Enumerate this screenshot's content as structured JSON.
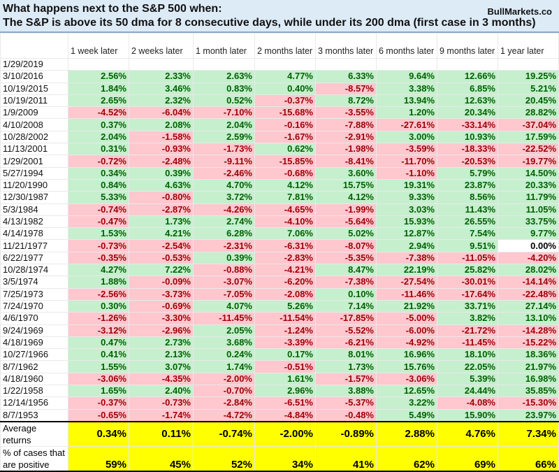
{
  "header": {
    "title_line1": "What happens next to the S&P 500 when:",
    "title_line2": "The S&P is above its 50 dma for 8 consecutive days, while under its 200 dma (first case in 3 months)",
    "brand": "BullMarkets.co",
    "background_color": "#ddebf7"
  },
  "colors": {
    "positive_fill": "#c6efce",
    "positive_text": "#006100",
    "negative_fill": "#ffc7ce",
    "negative_text": "#9c0006",
    "summary_fill": "#ffff00"
  },
  "columns": [
    "1 week later",
    "2 weeks later",
    "1 month later",
    "2 months later",
    "3 months later",
    "6 months later",
    "9 months later",
    "1 year later"
  ],
  "rows": [
    {
      "date": "1/29/2019",
      "values": [
        "",
        "",
        "",
        "",
        "",
        "",
        "",
        ""
      ]
    },
    {
      "date": "3/10/2016",
      "values": [
        "2.56%",
        "2.33%",
        "2.63%",
        "4.77%",
        "6.33%",
        "9.64%",
        "12.66%",
        "19.25%"
      ]
    },
    {
      "date": "10/19/2015",
      "values": [
        "1.84%",
        "3.46%",
        "0.83%",
        "0.40%",
        "-8.57%",
        "3.38%",
        "6.85%",
        "5.21%"
      ]
    },
    {
      "date": "10/19/2011",
      "values": [
        "2.65%",
        "2.32%",
        "0.52%",
        "-0.37%",
        "8.72%",
        "13.94%",
        "12.63%",
        "20.45%"
      ]
    },
    {
      "date": "1/9/2009",
      "values": [
        "-4.52%",
        "-6.04%",
        "-7.10%",
        "-15.68%",
        "-3.55%",
        "1.20%",
        "20.34%",
        "28.82%"
      ]
    },
    {
      "date": "4/10/2008",
      "values": [
        "0.37%",
        "2.08%",
        "2.04%",
        "-0.16%",
        "-7.88%",
        "-27.61%",
        "-33.14%",
        "-37.04%"
      ]
    },
    {
      "date": "10/28/2002",
      "values": [
        "2.04%",
        "-1.58%",
        "2.59%",
        "-1.67%",
        "-2.91%",
        "3.00%",
        "10.93%",
        "17.59%"
      ]
    },
    {
      "date": "11/13/2001",
      "values": [
        "0.31%",
        "-0.93%",
        "-1.73%",
        "0.62%",
        "-1.98%",
        "-3.59%",
        "-18.33%",
        "-22.52%"
      ]
    },
    {
      "date": "1/29/2001",
      "values": [
        "-0.72%",
        "-2.48%",
        "-9.11%",
        "-15.85%",
        "-8.41%",
        "-11.70%",
        "-20.53%",
        "-19.77%"
      ]
    },
    {
      "date": "5/27/1994",
      "values": [
        "0.34%",
        "0.39%",
        "-2.46%",
        "-0.68%",
        "3.60%",
        "-1.10%",
        "5.79%",
        "14.50%"
      ]
    },
    {
      "date": "11/20/1990",
      "values": [
        "0.84%",
        "4.63%",
        "4.70%",
        "4.12%",
        "15.75%",
        "19.31%",
        "23.87%",
        "20.33%"
      ]
    },
    {
      "date": "12/30/1987",
      "values": [
        "5.33%",
        "-0.80%",
        "3.72%",
        "7.81%",
        "4.12%",
        "9.33%",
        "8.56%",
        "11.79%"
      ]
    },
    {
      "date": "5/3/1984",
      "values": [
        "-0.74%",
        "-2.87%",
        "-4.26%",
        "-4.65%",
        "-1.99%",
        "3.03%",
        "11.43%",
        "11.05%"
      ]
    },
    {
      "date": "4/13/1982",
      "values": [
        "-0.47%",
        "1.73%",
        "2.74%",
        "-4.10%",
        "-5.64%",
        "15.93%",
        "26.55%",
        "33.75%"
      ]
    },
    {
      "date": "4/14/1978",
      "values": [
        "1.53%",
        "4.21%",
        "6.28%",
        "7.06%",
        "5.02%",
        "12.87%",
        "7.54%",
        "9.77%"
      ]
    },
    {
      "date": "11/21/1977",
      "values": [
        "-0.73%",
        "-2.54%",
        "-2.31%",
        "-6.31%",
        "-8.07%",
        "2.94%",
        "9.51%",
        "0.00%"
      ]
    },
    {
      "date": "6/22/1977",
      "values": [
        "-0.35%",
        "-0.53%",
        "0.39%",
        "-2.83%",
        "-5.35%",
        "-7.38%",
        "-11.05%",
        "-4.20%"
      ]
    },
    {
      "date": "10/28/1974",
      "values": [
        "4.27%",
        "7.22%",
        "-0.88%",
        "-4.21%",
        "8.47%",
        "22.19%",
        "25.82%",
        "28.02%"
      ]
    },
    {
      "date": "3/5/1974",
      "values": [
        "1.88%",
        "-0.09%",
        "-3.07%",
        "-6.20%",
        "-7.38%",
        "-27.54%",
        "-30.01%",
        "-14.14%"
      ]
    },
    {
      "date": "7/25/1973",
      "values": [
        "-2.56%",
        "-3.73%",
        "-7.05%",
        "-2.08%",
        "0.10%",
        "-11.46%",
        "-17.64%",
        "-22.48%"
      ]
    },
    {
      "date": "7/24/1970",
      "values": [
        "0.30%",
        "-0.69%",
        "4.07%",
        "5.26%",
        "7.14%",
        "21.92%",
        "33.71%",
        "27.14%"
      ]
    },
    {
      "date": "4/6/1970",
      "values": [
        "-1.26%",
        "-3.30%",
        "-11.45%",
        "-11.54%",
        "-17.85%",
        "-5.00%",
        "3.82%",
        "13.10%"
      ]
    },
    {
      "date": "9/24/1969",
      "values": [
        "-3.12%",
        "-2.96%",
        "2.05%",
        "-1.24%",
        "-5.52%",
        "-6.00%",
        "-21.72%",
        "-14.28%"
      ]
    },
    {
      "date": "4/18/1969",
      "values": [
        "0.47%",
        "2.73%",
        "3.68%",
        "-3.39%",
        "-6.21%",
        "-4.92%",
        "-11.45%",
        "-15.22%"
      ]
    },
    {
      "date": "10/27/1966",
      "values": [
        "0.41%",
        "2.13%",
        "0.24%",
        "0.17%",
        "8.01%",
        "16.96%",
        "18.10%",
        "18.36%"
      ]
    },
    {
      "date": "8/7/1962",
      "values": [
        "1.55%",
        "3.07%",
        "1.74%",
        "-0.51%",
        "1.73%",
        "15.76%",
        "22.05%",
        "21.97%"
      ]
    },
    {
      "date": "4/18/1960",
      "values": [
        "-3.06%",
        "-4.35%",
        "-2.00%",
        "1.61%",
        "-1.57%",
        "-3.06%",
        "5.39%",
        "16.98%"
      ]
    },
    {
      "date": "1/22/1958",
      "values": [
        "1.65%",
        "2.40%",
        "-0.70%",
        "2.96%",
        "3.88%",
        "12.65%",
        "24.44%",
        "35.85%"
      ]
    },
    {
      "date": "12/14/1956",
      "values": [
        "-0.37%",
        "-0.73%",
        "-2.84%",
        "-6.51%",
        "-5.37%",
        "3.22%",
        "-4.08%",
        "-15.30%"
      ]
    },
    {
      "date": "8/7/1953",
      "values": [
        "-0.65%",
        "-1.74%",
        "-4.72%",
        "-4.84%",
        "-0.48%",
        "5.49%",
        "15.90%",
        "23.97%"
      ]
    }
  ],
  "summary": {
    "average_label": "Average returns",
    "average_values": [
      "0.34%",
      "0.11%",
      "-0.74%",
      "-2.00%",
      "-0.89%",
      "2.88%",
      "4.76%",
      "7.34%"
    ],
    "positive_label": "% of cases that are positive",
    "positive_values": [
      "59%",
      "45%",
      "52%",
      "34%",
      "41%",
      "62%",
      "69%",
      "66%"
    ]
  }
}
